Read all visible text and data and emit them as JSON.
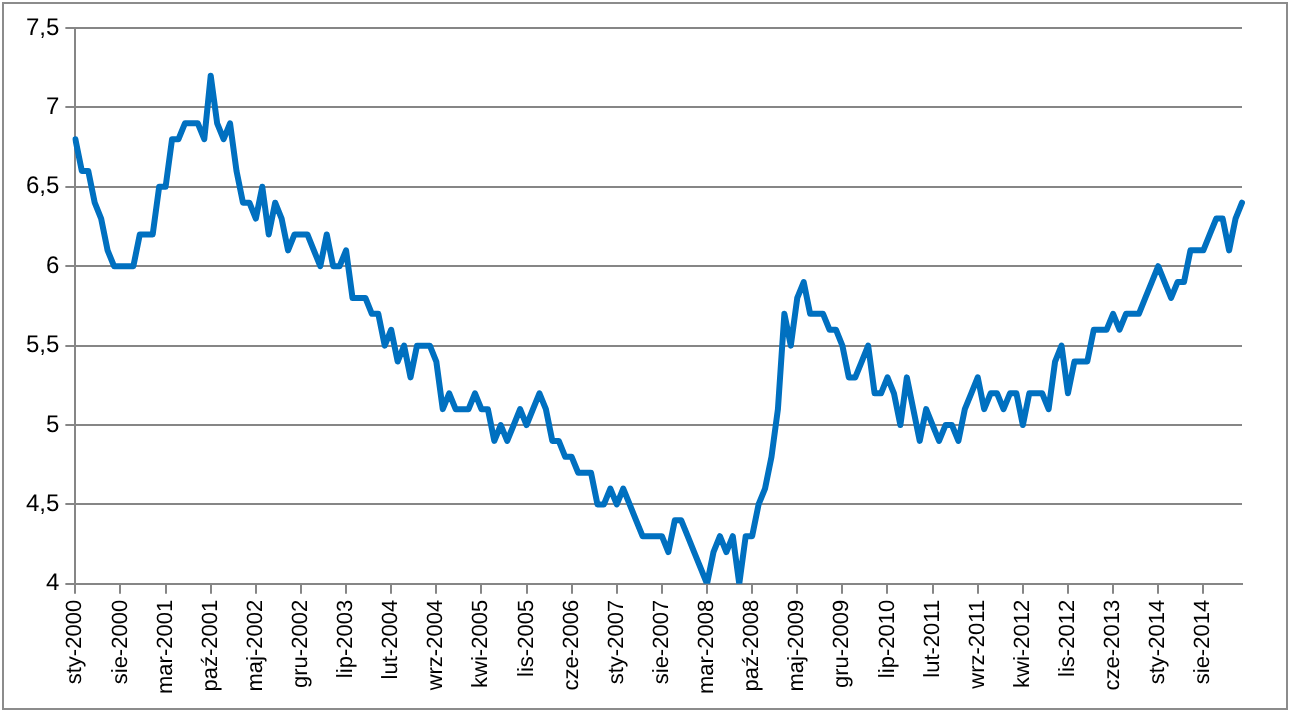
{
  "chart_data": {
    "type": "line",
    "categories": [
      "sty-2000",
      null,
      null,
      null,
      null,
      null,
      null,
      "sie-2000",
      null,
      null,
      null,
      null,
      null,
      null,
      "mar-2001",
      null,
      null,
      null,
      null,
      null,
      null,
      "paź-2001",
      null,
      null,
      null,
      null,
      null,
      null,
      "maj-2002",
      null,
      null,
      null,
      null,
      null,
      null,
      "gru-2002",
      null,
      null,
      null,
      null,
      null,
      null,
      "lip-2003",
      null,
      null,
      null,
      null,
      null,
      null,
      "lut-2004",
      null,
      null,
      null,
      null,
      null,
      null,
      "wrz-2004",
      null,
      null,
      null,
      null,
      null,
      null,
      "kwi-2005",
      null,
      null,
      null,
      null,
      null,
      null,
      "lis-2005",
      null,
      null,
      null,
      null,
      null,
      null,
      "cze-2006",
      null,
      null,
      null,
      null,
      null,
      null,
      "sty-2007",
      null,
      null,
      null,
      null,
      null,
      null,
      "sie-2007",
      null,
      null,
      null,
      null,
      null,
      null,
      "mar-2008",
      null,
      null,
      null,
      null,
      null,
      null,
      "paź-2008",
      null,
      null,
      null,
      null,
      null,
      null,
      "maj-2009",
      null,
      null,
      null,
      null,
      null,
      null,
      "gru-2009",
      null,
      null,
      null,
      null,
      null,
      null,
      "lip-2010",
      null,
      null,
      null,
      null,
      null,
      null,
      "lut-2011",
      null,
      null,
      null,
      null,
      null,
      null,
      "wrz-2011",
      null,
      null,
      null,
      null,
      null,
      null,
      "kwi-2012",
      null,
      null,
      null,
      null,
      null,
      null,
      "lis-2012",
      null,
      null,
      null,
      null,
      null,
      null,
      "cze-2013",
      null,
      null,
      null,
      null,
      null,
      null,
      "sty-2014",
      null,
      null,
      null,
      null,
      null,
      null,
      "sie-2014",
      null,
      null,
      null,
      null,
      null,
      null
    ],
    "series": [
      {
        "color": "#0070c0",
        "values": [
          6.8,
          6.6,
          6.6,
          6.4,
          6.3,
          6.1,
          6.0,
          6.0,
          6.0,
          6.0,
          6.2,
          6.2,
          6.2,
          6.5,
          6.5,
          6.8,
          6.8,
          6.9,
          6.9,
          6.9,
          6.8,
          7.2,
          6.9,
          6.8,
          6.9,
          6.6,
          6.4,
          6.4,
          6.3,
          6.5,
          6.2,
          6.4,
          6.3,
          6.1,
          6.2,
          6.2,
          6.2,
          6.1,
          6.0,
          6.2,
          6.0,
          6.0,
          6.1,
          5.8,
          5.8,
          5.8,
          5.7,
          5.7,
          5.5,
          5.6,
          5.4,
          5.5,
          5.3,
          5.5,
          5.5,
          5.5,
          5.4,
          5.1,
          5.2,
          5.1,
          5.1,
          5.1,
          5.2,
          5.1,
          5.1,
          4.9,
          5.0,
          4.9,
          5.0,
          5.1,
          5.0,
          5.1,
          5.2,
          5.1,
          4.9,
          4.9,
          4.8,
          4.8,
          4.7,
          4.7,
          4.7,
          4.5,
          4.5,
          4.6,
          4.5,
          4.6,
          4.5,
          4.4,
          4.3,
          4.3,
          4.3,
          4.3,
          4.2,
          4.4,
          4.4,
          4.3,
          4.2,
          4.1,
          4.0,
          4.2,
          4.3,
          4.2,
          4.3,
          4.0,
          4.3,
          4.3,
          4.5,
          4.6,
          4.8,
          5.1,
          5.7,
          5.5,
          5.8,
          5.9,
          5.7,
          5.7,
          5.7,
          5.6,
          5.6,
          5.5,
          5.3,
          5.3,
          5.4,
          5.5,
          5.2,
          5.2,
          5.3,
          5.2,
          5.0,
          5.3,
          5.1,
          4.9,
          5.1,
          5.0,
          4.9,
          5.0,
          5.0,
          4.9,
          5.1,
          5.2,
          5.3,
          5.1,
          5.2,
          5.2,
          5.1,
          5.2,
          5.2,
          5.0,
          5.2,
          5.2,
          5.2,
          5.1,
          5.4,
          5.5,
          5.2,
          5.4,
          5.4,
          5.4,
          5.6,
          5.6,
          5.6,
          5.7,
          5.6,
          5.7,
          5.7,
          5.7,
          5.8,
          5.9,
          6.0,
          5.9,
          5.8,
          5.9,
          5.9,
          6.1,
          6.1,
          6.1,
          6.2,
          6.3,
          6.3,
          6.1,
          6.3,
          6.4
        ]
      }
    ],
    "ylim": [
      4,
      7.5
    ],
    "yticks": [
      {
        "value": 4,
        "label": "4"
      },
      {
        "value": 4.5,
        "label": "4,5"
      },
      {
        "value": 5,
        "label": "5"
      },
      {
        "value": 5.5,
        "label": "5,5"
      },
      {
        "value": 6,
        "label": "6"
      },
      {
        "value": 6.5,
        "label": "6,5"
      },
      {
        "value": 7,
        "label": "7"
      },
      {
        "value": 7.5,
        "label": "7,5"
      }
    ],
    "grid": "y",
    "legend": false,
    "marker": "none",
    "line_style": "solid"
  }
}
